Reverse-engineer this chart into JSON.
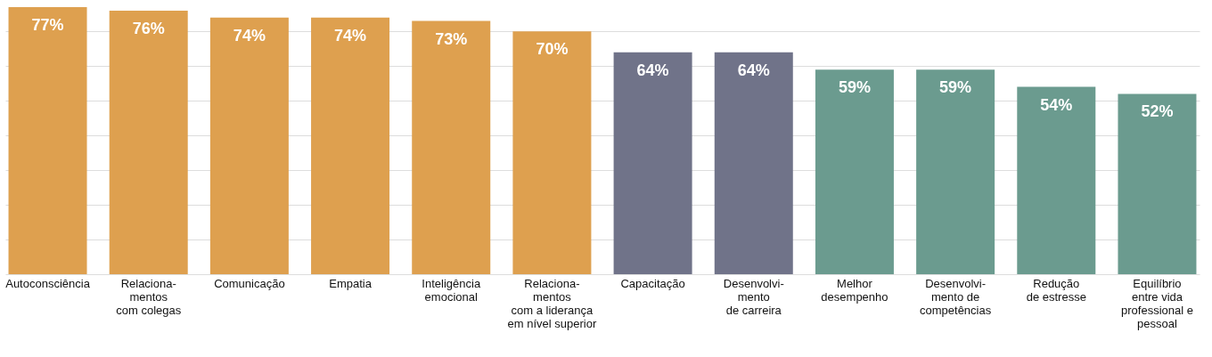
{
  "chart_data": {
    "type": "bar",
    "categories": [
      "Autoconsciência",
      "Relaciona-\nmentos\ncom colegas",
      "Comunicação",
      "Empatia",
      "Inteligência\nemocional",
      "Relaciona-\nmentos\ncom a liderança\nem nível superior",
      "Capacitação",
      "Desenvolvi-\nmento\nde carreira",
      "Melhor\ndesempenho",
      "Desenvolvi-\nmento de\ncompetências",
      "Redução\nde estresse",
      "Equilíbrio\nentre vida\nprofessional e\npessoal"
    ],
    "values": [
      77,
      76,
      74,
      74,
      73,
      70,
      64,
      64,
      59,
      59,
      54,
      52
    ],
    "value_labels": [
      "77%",
      "76%",
      "74%",
      "74%",
      "73%",
      "70%",
      "64%",
      "64%",
      "59%",
      "59%",
      "54%",
      "52%"
    ],
    "colors": [
      "#dea04f",
      "#dea04f",
      "#dea04f",
      "#dea04f",
      "#dea04f",
      "#dea04f",
      "#707389",
      "#707389",
      "#6b9b8f",
      "#6b9b8f",
      "#6b9b8f",
      "#6b9b8f"
    ],
    "ylim": [
      0,
      77
    ],
    "yticks": [
      {
        "value": 0,
        "label": null
      },
      {
        "value": 10,
        "label": null
      },
      {
        "value": 20,
        "label": null
      },
      {
        "value": 30,
        "label": null
      },
      {
        "value": 40,
        "label": null
      },
      {
        "value": 50,
        "label": null
      },
      {
        "value": 60,
        "label": null
      },
      {
        "value": 70,
        "label": null
      }
    ],
    "grid": "y",
    "tick_labels": "x",
    "legend": false
  }
}
